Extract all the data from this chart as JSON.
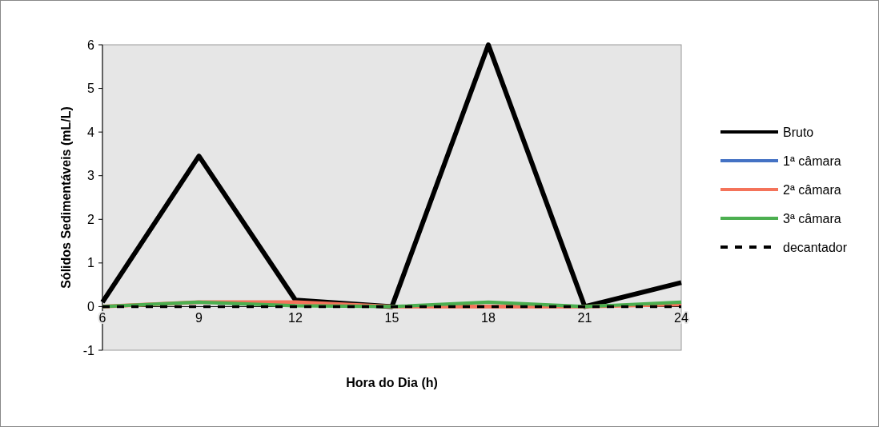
{
  "chart_data": {
    "type": "line",
    "xlabel": "Hora do Dia (h)",
    "ylabel": "Sólidos Sedimentáveis (mL/L)",
    "x": [
      6,
      9,
      12,
      15,
      18,
      21,
      24
    ],
    "xlim": [
      6,
      24
    ],
    "xticks": [
      6,
      9,
      12,
      15,
      18,
      21,
      24
    ],
    "ylim": [
      -1,
      6
    ],
    "yticks": [
      -1,
      0,
      1,
      2,
      3,
      4,
      5,
      6
    ],
    "legend": "right",
    "grid": false,
    "series": [
      {
        "name": "Bruto",
        "color": "#000000",
        "values": [
          0.1,
          3.45,
          0.15,
          0,
          6,
          0,
          0.55
        ]
      },
      {
        "name": "1ª câmara",
        "color": "#4472c4",
        "values": [
          null,
          null,
          null,
          null,
          null,
          null,
          null
        ]
      },
      {
        "name": "2ª câmara",
        "color": "#f4735a",
        "values": [
          0,
          0.1,
          0.1,
          0,
          0,
          0,
          0.05
        ]
      },
      {
        "name": "3ª câmara",
        "color": "#4caf50",
        "values": [
          0,
          0.1,
          0.02,
          0,
          0.1,
          0,
          0.1
        ]
      },
      {
        "name": "decantador",
        "color": "#000000",
        "line_style": "dashed",
        "values": [
          0,
          0,
          0,
          0,
          0,
          0,
          0
        ]
      }
    ]
  }
}
